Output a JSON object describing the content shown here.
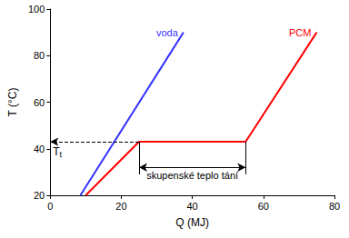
{
  "chart_data": {
    "type": "line",
    "xlabel": "Q (MJ)",
    "ylabel": "T (°C)",
    "xlim": [
      0,
      80
    ],
    "xticks": [
      0,
      20,
      40,
      60,
      80
    ],
    "ylim": [
      20,
      100
    ],
    "yticks": [
      20,
      40,
      60,
      80,
      100
    ],
    "grid": false,
    "series": [
      {
        "name": "voda",
        "color": "#3333ff",
        "x": [
          8.5,
          37.5
        ],
        "values": [
          20,
          90
        ]
      },
      {
        "name": "PCM",
        "color": "#ff0000",
        "x": [
          10,
          25,
          55,
          75
        ],
        "values": [
          20,
          43,
          43,
          90
        ]
      }
    ],
    "annotations": [
      {
        "text": "T",
        "subscript": "t",
        "x": [
          25,
          0
        ],
        "y": 43,
        "line_style": "dashed"
      },
      {
        "text": "skupenské teplo tání",
        "x": [
          25,
          55
        ],
        "y": 32,
        "y_top": 43,
        "y_bottom": 29
      }
    ]
  }
}
